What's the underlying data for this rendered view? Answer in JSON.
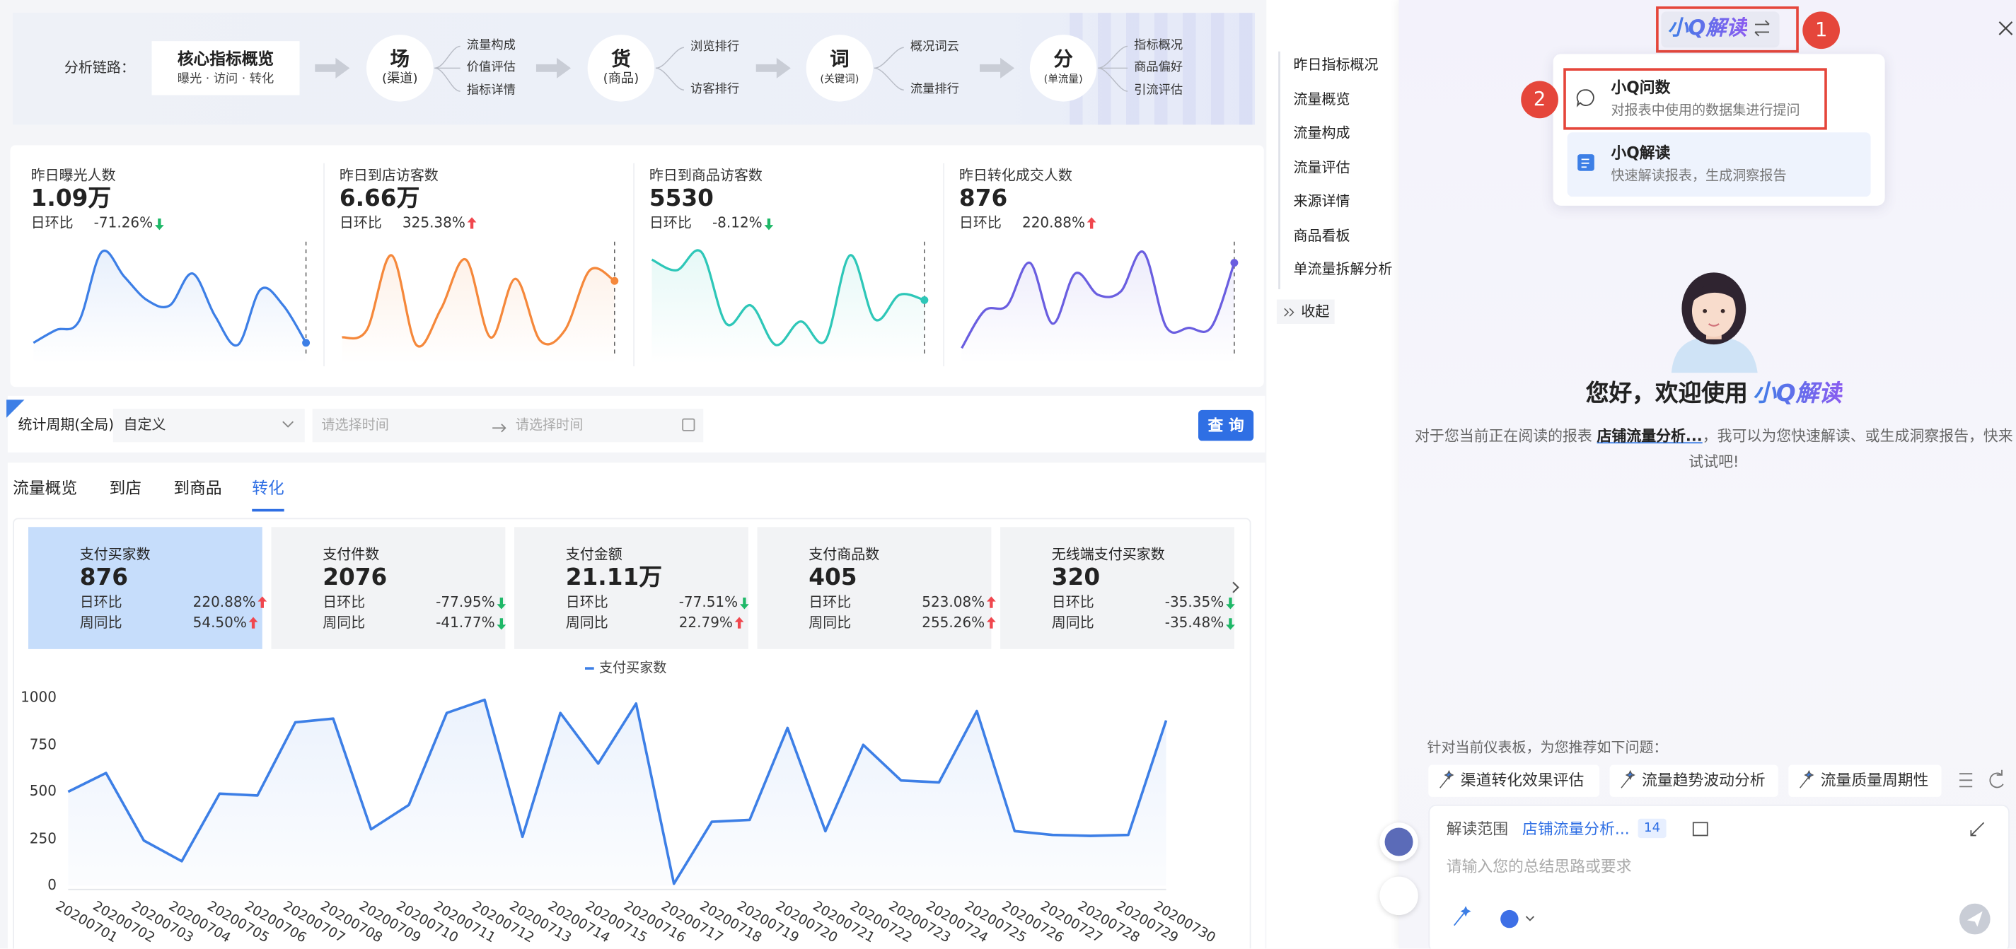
{
  "top_panel": {
    "label": "分析链路：",
    "core": {
      "title": "核心指标概览",
      "subtitle": "曝光 · 访问 · 转化"
    },
    "stages": [
      {
        "char": "场",
        "sub": "(渠道)",
        "items": [
          "流量构成",
          "价值评估",
          "指标详情"
        ]
      },
      {
        "char": "货",
        "sub": "(商品)",
        "items": [
          "浏览排行",
          "访客排行"
        ]
      },
      {
        "char": "词",
        "sub": "(关键词)",
        "items": [
          "概况词云",
          "流量排行"
        ]
      },
      {
        "char": "分",
        "sub": "(单流量)",
        "items": [
          "指标概况",
          "商品偏好",
          "引流评估"
        ]
      }
    ]
  },
  "kpis": [
    {
      "title": "昨日曝光人数",
      "value": "1.09万",
      "change_label": "日环比",
      "change": "-71.26%",
      "trend": "down",
      "color": "#3d7fe6",
      "spark_ylim": [
        0,
        100
      ],
      "sparkline": [
        10,
        22,
        30,
        95,
        72,
        50,
        45,
        75,
        35,
        8,
        60,
        45,
        10
      ]
    },
    {
      "title": "昨日到店访客数",
      "value": "6.66万",
      "change_label": "日环比",
      "change": "325.38%",
      "trend": "up",
      "color": "#f5883b",
      "spark_ylim": [
        0,
        100
      ],
      "sparkline": [
        15,
        22,
        92,
        8,
        42,
        88,
        15,
        70,
        12,
        22,
        78,
        68
      ]
    },
    {
      "title": "昨日到商品访客数",
      "value": "5530",
      "change_label": "日环比",
      "change": "-8.12%",
      "trend": "down",
      "color": "#2ec7b8",
      "spark_ylim": [
        0,
        100
      ],
      "sparkline": [
        88,
        78,
        95,
        28,
        45,
        8,
        30,
        12,
        92,
        32,
        55,
        50
      ]
    },
    {
      "title": "昨日转化成交人数",
      "value": "876",
      "change_label": "日环比",
      "change": "220.88%",
      "trend": "up",
      "color": "#6a5ee0",
      "spark_ylim": [
        0,
        100
      ],
      "sparkline": [
        5,
        40,
        45,
        85,
        28,
        75,
        55,
        58,
        95,
        25,
        24,
        25,
        85
      ]
    }
  ],
  "filter": {
    "label": "统计周期(全局)",
    "select": "自定义",
    "start": "请选择时间",
    "end": "请选择时间",
    "button": "查 询"
  },
  "tabs": {
    "items": [
      "流量概览",
      "到店",
      "到商品",
      "转化"
    ],
    "active": 3
  },
  "metric_cards": {
    "selected": 0,
    "cards": [
      {
        "title": "支付买家数",
        "value": "876",
        "rows": [
          {
            "label": "日环比",
            "value": "220.88%",
            "trend": "up"
          },
          {
            "label": "周同比",
            "value": "54.50%",
            "trend": "up"
          }
        ]
      },
      {
        "title": "支付件数",
        "value": "2076",
        "rows": [
          {
            "label": "日环比",
            "value": "-77.95%",
            "trend": "down"
          },
          {
            "label": "周同比",
            "value": "-41.77%",
            "trend": "down"
          }
        ]
      },
      {
        "title": "支付金额",
        "value": "21.11万",
        "rows": [
          {
            "label": "日环比",
            "value": "-77.51%",
            "trend": "down"
          },
          {
            "label": "周同比",
            "value": "22.79%",
            "trend": "up"
          }
        ]
      },
      {
        "title": "支付商品数",
        "value": "405",
        "rows": [
          {
            "label": "日环比",
            "value": "523.08%",
            "trend": "up"
          },
          {
            "label": "周同比",
            "value": "255.26%",
            "trend": "up"
          }
        ]
      },
      {
        "title": "无线端支付买家数",
        "value": "320",
        "rows": [
          {
            "label": "日环比",
            "value": "-35.35%",
            "trend": "down"
          },
          {
            "label": "周同比",
            "value": "-35.48%",
            "trend": "down"
          }
        ]
      }
    ]
  },
  "chart_data": {
    "type": "line",
    "categories": [
      "20200701",
      "20200702",
      "20200703",
      "20200704",
      "20200705",
      "20200706",
      "20200707",
      "20200708",
      "20200709",
      "20200710",
      "20200711",
      "20200712",
      "20200713",
      "20200714",
      "20200715",
      "20200716",
      "20200717",
      "20200718",
      "20200719",
      "20200720",
      "20200721",
      "20200722",
      "20200723",
      "20200724",
      "20200725",
      "20200726",
      "20200727",
      "20200728",
      "20200729",
      "20200730"
    ],
    "series": [
      {
        "name": "支付买家数",
        "color": "#3d7fe6",
        "values": [
          500,
          600,
          240,
          130,
          490,
          480,
          870,
          890,
          300,
          430,
          920,
          990,
          260,
          920,
          650,
          970,
          10,
          340,
          350,
          840,
          290,
          750,
          560,
          550,
          930,
          290,
          270,
          265,
          270,
          880
        ]
      }
    ],
    "ylim": [
      0,
      1000
    ],
    "yticks": [
      0,
      250,
      500,
      750,
      1000
    ]
  },
  "side_nav": {
    "items": [
      "昨日指标概况",
      "流量概览",
      "流量构成",
      "流量评估",
      "来源详情",
      "商品看板",
      "单流量拆解分析"
    ],
    "collapse": "收起"
  },
  "assistant": {
    "title": "小Q解读",
    "badges": [
      "1",
      "2"
    ],
    "menu": [
      {
        "title": "小Q问数",
        "desc": "对报表中使用的数据集进行提问"
      },
      {
        "title": "小Q解读",
        "desc": "快速解读报表，生成洞察报告"
      }
    ],
    "greeting": "您好，欢迎使用",
    "greeting_brand": "小Q解读",
    "intro_pre": "对于您当前正在阅读的报表 ",
    "intro_link": "店铺流量分析...",
    "intro_post": "，我可以为您快速解读、或生成洞察报告，快来试试吧!",
    "suggest_label": "针对当前仪表板，为您推荐如下问题：",
    "suggestions": [
      "渠道转化效果评估",
      "流量趋势波动分析",
      "流量质量周期性"
    ],
    "scope_label": "解读范围",
    "scope_value": "店铺流量分析...",
    "scope_count": "14",
    "placeholder": "请输入您的总结思路或要求"
  }
}
